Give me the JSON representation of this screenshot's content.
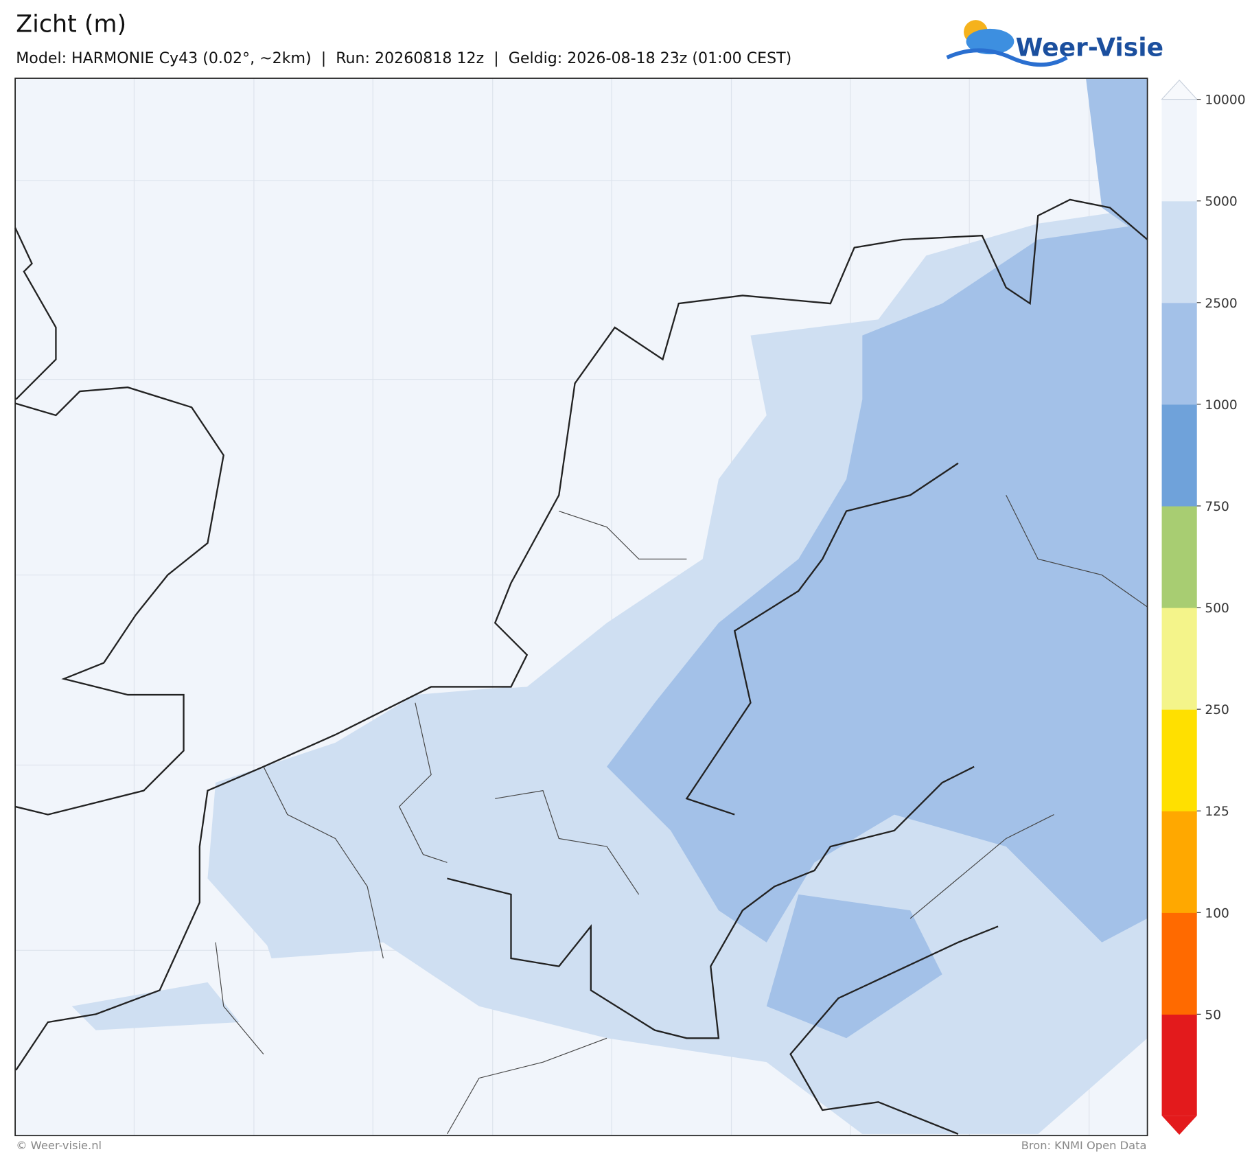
{
  "header": {
    "title": "Zicht (m)",
    "subtitle": "Model: HARMONIE Cy43 (0.02°, ~2km)  |  Run: 20260818 12z  |  Geldig: 2026-08-18 23z (01:00 CEST)",
    "logo": "Weer-Visie"
  },
  "colorbar": {
    "levels": [
      50,
      100,
      125,
      250,
      500,
      750,
      1000,
      2500,
      5000,
      10000
    ],
    "colors": [
      "#e31a1c",
      "#ff6a00",
      "#ffa800",
      "#ffe000",
      "#f4f48a",
      "#a8cd72",
      "#6fa2da",
      "#a3c1e8",
      "#cfdff2",
      "#f1f5fb",
      "#f7f9fc"
    ]
  },
  "footer": {
    "left": "© Weer-visie.nl",
    "right": "Bron: KNMI Open Data"
  }
}
